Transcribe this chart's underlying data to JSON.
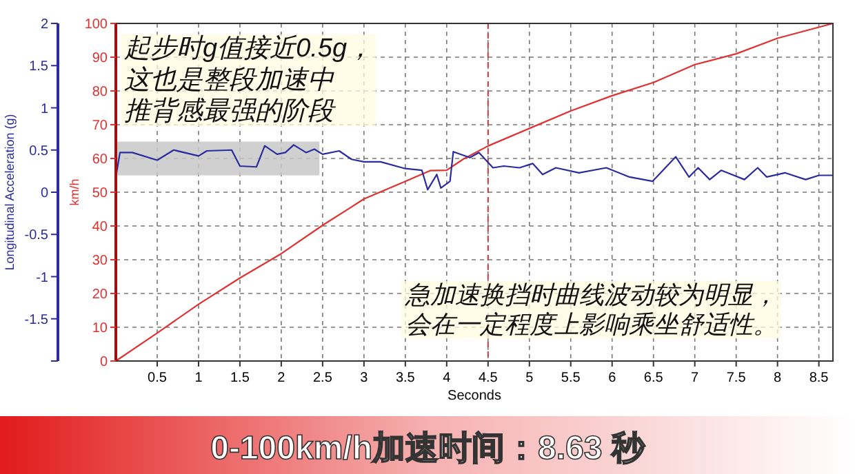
{
  "chart_data": {
    "type": "line",
    "xlabel": "Seconds",
    "ylabel": "km/h",
    "y2label": "Longitudinal Acceleration (g)",
    "xlim": [
      0,
      8.67
    ],
    "xticks": [
      0.5,
      1,
      1.5,
      2,
      2.5,
      3,
      3.5,
      4,
      4.5,
      5,
      5.5,
      6,
      6.5,
      7,
      7.5,
      8,
      8.5
    ],
    "ylim": [
      0,
      100
    ],
    "yticks": [
      0,
      10,
      20,
      30,
      40,
      50,
      60,
      70,
      80,
      90,
      100
    ],
    "y2lim": [
      -2,
      2
    ],
    "y2ticks": [
      {
        "value": -2,
        "label": null
      },
      -1.5,
      -1,
      -0.5,
      0,
      0.5,
      1,
      1.5,
      2
    ],
    "grid": true,
    "marker": "none",
    "line_style": "solid",
    "ref_lines": [
      {
        "axis": "x",
        "value": 4.5,
        "label": null,
        "color": "#c04040",
        "line_style": "dashed"
      }
    ],
    "series": [
      {
        "color": "#e03030",
        "axis": "y",
        "x": [
          0,
          0.5,
          1,
          1.5,
          2,
          2.5,
          3,
          3.5,
          3.8,
          4,
          4.2,
          4.5,
          5,
          5.5,
          6,
          6.5,
          7,
          7.5,
          8,
          8.67
        ],
        "values": [
          0,
          8.3,
          16.8,
          24.6,
          31.8,
          40.2,
          48,
          53.2,
          56.4,
          56.5,
          59.8,
          63.7,
          68.9,
          74.1,
          78.6,
          82.5,
          87.8,
          91,
          95.6,
          100
        ]
      },
      {
        "color": "#2b2ba0",
        "axis": "y2",
        "x": [
          0,
          0.05,
          0.2,
          0.5,
          0.7,
          1,
          1.1,
          1.4,
          1.5,
          1.7,
          1.8,
          1.95,
          2.05,
          2.15,
          2.3,
          2.4,
          2.5,
          2.7,
          2.85,
          3,
          3.2,
          3.5,
          3.7,
          3.77,
          3.88,
          3.93,
          4.04,
          4.08,
          4.28,
          4.39,
          4.56,
          4.69,
          4.88,
          5.04,
          5.16,
          5.32,
          5.6,
          5.93,
          6.21,
          6.49,
          6.77,
          6.93,
          7.04,
          7.18,
          7.32,
          7.6,
          7.76,
          7.87,
          8.09,
          8.34,
          8.5,
          8.67
        ],
        "values": [
          0.18,
          0.47,
          0.47,
          0.38,
          0.5,
          0.43,
          0.49,
          0.5,
          0.31,
          0.3,
          0.55,
          0.45,
          0.47,
          0.56,
          0.47,
          0.51,
          0.45,
          0.49,
          0.39,
          0.36,
          0.36,
          0.28,
          0.26,
          0.03,
          0.21,
          0.05,
          0.13,
          0.48,
          0.41,
          0.47,
          0.29,
          0.31,
          0.29,
          0.34,
          0.21,
          0.29,
          0.23,
          0.29,
          0.18,
          0.13,
          0.42,
          0.18,
          0.29,
          0.15,
          0.26,
          0.15,
          0.29,
          0.18,
          0.23,
          0.15,
          0.2,
          0.2
        ]
      }
    ],
    "annotations": [
      "起步时g值接近0.5g，",
      "这也是整段加速中",
      "推背感最强的阶段",
      "急加速换挡时曲线波动较为明显，",
      "会在一定程度上影响乘坐舒适性。",
      "0-100km/h加速时间：8.63 秒"
    ]
  }
}
